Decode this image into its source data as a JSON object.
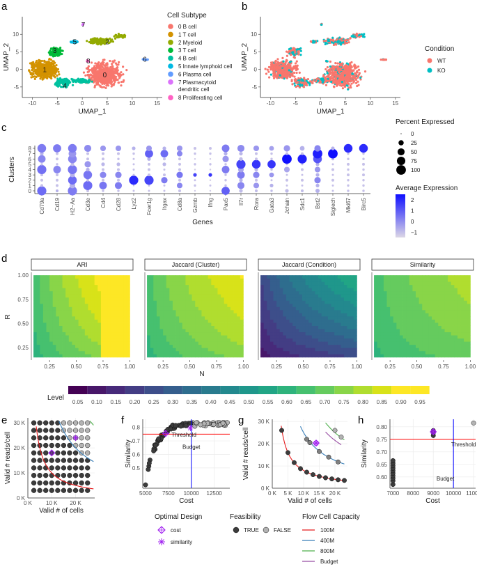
{
  "panels": {
    "a": "a",
    "b": "b",
    "c": "c",
    "d": "d",
    "e": "e",
    "f": "f",
    "g": "g",
    "h": "h"
  },
  "chart_data": [
    {
      "id": "a",
      "type": "scatter",
      "xlabel": "UMAP_1",
      "ylabel": "UMAP_2",
      "xticks": [
        -10,
        -5,
        0,
        5,
        10,
        15
      ],
      "yticks": [
        -5,
        0,
        5,
        10
      ],
      "xlim": [
        -12,
        16
      ],
      "ylim": [
        -8,
        15
      ],
      "legend_title": "Cell Subtype",
      "clusters": [
        {
          "label": "0 B cell",
          "id": "0",
          "color": "#F8766D",
          "center": [
            4.5,
            -1.5
          ]
        },
        {
          "label": "1 T cell",
          "id": "1",
          "color": "#D39200",
          "center": [
            -7.5,
            0
          ]
        },
        {
          "label": "2 Myeloid",
          "id": "2",
          "color": "#93AA00",
          "center": [
            5,
            8
          ]
        },
        {
          "label": "3 T cell",
          "id": "3",
          "color": "#00BA38",
          "center": [
            -5.5,
            5.5
          ]
        },
        {
          "label": "4 B cell",
          "id": "4",
          "color": "#00C19F",
          "center": [
            -3.5,
            -4.5
          ]
        },
        {
          "label": "5 Innate lymphoid cell",
          "id": "5",
          "color": "#00B9E3",
          "center": [
            -1.5,
            8
          ]
        },
        {
          "label": "6 Plasma cell",
          "id": "6",
          "color": "#619CFF",
          "center": [
            12.5,
            3
          ]
        },
        {
          "label": "7 Plasmacytoid dendritic cell",
          "id": "7",
          "color": "#DB72FB",
          "center": [
            0.2,
            12.8
          ]
        },
        {
          "label": "8 Proliferating cell",
          "id": "8",
          "color": "#FF61C3",
          "center": [
            1.2,
            2.5
          ]
        }
      ]
    },
    {
      "id": "b",
      "type": "scatter",
      "xlabel": "UMAP_1",
      "ylabel": "UMAP_2",
      "xticks": [
        -10,
        -5,
        0,
        5,
        10,
        15
      ],
      "yticks": [
        -5,
        0,
        5,
        10
      ],
      "legend_title": "Condition",
      "series": [
        {
          "name": "WT",
          "color": "#F8766D"
        },
        {
          "name": "KO",
          "color": "#00BFC4"
        }
      ]
    },
    {
      "id": "c",
      "type": "dotplot",
      "xlabel": "Genes",
      "ylabel": "Clusters",
      "genes": [
        "Cd79a",
        "Cd19",
        "H2−Aa",
        "Cd3e",
        "Cd4",
        "Cd28",
        "Lyz2",
        "Fcer1g",
        "Itgax",
        "Cd8a",
        "Gzmb",
        "Ifng",
        "Pax5",
        "Il7r",
        "Rora",
        "Gata3",
        "Jchain",
        "Sdc1",
        "Bst2",
        "Siglech",
        "Mki67",
        "Birc5"
      ],
      "clusters": [
        "0",
        "1",
        "2",
        "3",
        "4",
        "5",
        "6",
        "7",
        "8"
      ],
      "pct_expressed": [
        [
          90,
          5,
          90,
          5,
          3,
          3,
          2,
          2,
          2,
          5,
          1,
          1,
          70,
          10,
          5,
          3,
          10,
          5,
          15,
          2,
          3,
          3
        ],
        [
          5,
          5,
          30,
          90,
          60,
          50,
          1,
          2,
          2,
          30,
          3,
          2,
          3,
          50,
          30,
          10,
          2,
          2,
          10,
          2,
          3,
          3
        ],
        [
          5,
          5,
          80,
          5,
          5,
          5,
          90,
          90,
          40,
          5,
          2,
          1,
          3,
          10,
          5,
          2,
          5,
          5,
          40,
          5,
          3,
          3
        ],
        [
          5,
          5,
          20,
          80,
          40,
          40,
          2,
          5,
          5,
          40,
          10,
          10,
          3,
          60,
          40,
          20,
          2,
          2,
          10,
          2,
          5,
          5
        ],
        [
          90,
          60,
          90,
          10,
          5,
          5,
          2,
          5,
          2,
          5,
          1,
          1,
          60,
          30,
          10,
          3,
          30,
          5,
          30,
          5,
          3,
          3
        ],
        [
          3,
          3,
          10,
          40,
          10,
          10,
          2,
          5,
          10,
          5,
          3,
          3,
          3,
          90,
          80,
          70,
          2,
          2,
          10,
          2,
          5,
          5
        ],
        [
          60,
          5,
          80,
          5,
          5,
          3,
          2,
          10,
          5,
          5,
          1,
          1,
          40,
          10,
          5,
          3,
          100,
          90,
          80,
          5,
          3,
          3
        ],
        [
          10,
          5,
          60,
          5,
          5,
          5,
          3,
          70,
          60,
          30,
          3,
          3,
          10,
          10,
          5,
          3,
          5,
          5,
          100,
          100,
          3,
          3
        ],
        [
          80,
          70,
          80,
          50,
          30,
          30,
          10,
          30,
          10,
          30,
          5,
          5,
          60,
          50,
          30,
          20,
          40,
          20,
          40,
          10,
          80,
          80
        ]
      ],
      "avg_expression": [
        [
          0.8,
          -0.5,
          0.5,
          -0.8,
          -0.8,
          -0.8,
          -0.8,
          -0.8,
          -0.8,
          -0.8,
          -1,
          -1,
          1.0,
          -0.7,
          -0.7,
          -0.7,
          -0.7,
          -0.7,
          -0.5,
          -0.8,
          -0.8,
          -0.8
        ],
        [
          -0.8,
          -0.8,
          -0.5,
          0.8,
          0.6,
          0.5,
          -0.8,
          -0.8,
          -0.8,
          0.3,
          -0.8,
          -0.8,
          -0.8,
          0.3,
          0,
          -0.5,
          -0.8,
          -0.8,
          -0.5,
          -0.8,
          -0.8,
          -0.8
        ],
        [
          -0.8,
          -0.8,
          0.8,
          -0.8,
          -0.8,
          -0.8,
          2.0,
          1.5,
          0.5,
          -0.8,
          -0.8,
          -1,
          -0.8,
          -0.5,
          -0.8,
          -0.8,
          -0.8,
          -0.8,
          0.3,
          -0.8,
          -0.8,
          -0.8
        ],
        [
          -0.8,
          -0.8,
          -0.5,
          0.6,
          0.3,
          0.3,
          -0.8,
          -0.8,
          -0.8,
          0.6,
          1.5,
          1.8,
          -0.8,
          0.5,
          0.3,
          0,
          -0.8,
          -0.8,
          -0.5,
          -0.8,
          -0.8,
          -0.8
        ],
        [
          0.7,
          0.3,
          0.6,
          -0.5,
          -0.8,
          -0.8,
          -0.8,
          -0.8,
          -0.8,
          -0.8,
          -1,
          -1,
          0.5,
          -0.3,
          -0.6,
          -0.8,
          -0.3,
          -0.8,
          0,
          -0.8,
          -0.8,
          -0.8
        ],
        [
          -0.8,
          -0.8,
          -0.8,
          0,
          -0.6,
          -0.6,
          -0.8,
          -0.8,
          -0.6,
          -0.8,
          -0.8,
          -0.8,
          -0.8,
          1.5,
          1.8,
          1.8,
          -0.8,
          -0.8,
          -0.5,
          -0.8,
          -0.8,
          -0.8
        ],
        [
          0.3,
          -0.8,
          0.3,
          -0.8,
          -0.8,
          -0.8,
          -0.8,
          -0.5,
          -0.8,
          -0.8,
          -1,
          -1,
          0,
          -0.7,
          -0.8,
          -0.8,
          2.5,
          2.2,
          1.2,
          -0.6,
          -0.8,
          -0.8
        ],
        [
          -0.5,
          -0.8,
          0,
          -0.8,
          -0.8,
          -0.8,
          -0.8,
          1.0,
          0.8,
          0.3,
          -0.8,
          -0.8,
          -0.5,
          -0.6,
          -0.8,
          -0.8,
          -0.7,
          -0.8,
          2.2,
          2.5,
          -0.8,
          -0.8
        ],
        [
          0.5,
          0.5,
          0.5,
          0.2,
          0,
          0,
          -0.5,
          0,
          -0.5,
          0,
          -0.8,
          -0.8,
          0.5,
          0.2,
          0,
          -0.2,
          0,
          -0.5,
          0.3,
          -0.5,
          2.0,
          2.0
        ]
      ],
      "size_legend_title": "Percent Expressed",
      "size_legend": [
        0,
        25,
        50,
        75,
        100
      ],
      "color_legend_title": "Average Expression",
      "color_legend_ticks": [
        2,
        1,
        0,
        -1
      ]
    },
    {
      "id": "d",
      "type": "heatmap",
      "xlabel": "N",
      "ylabel": "R",
      "xticks": [
        0.25,
        0.5,
        0.75,
        1.0
      ],
      "xtick_labels": [
        "0.25",
        "0.50",
        "0.75",
        "1.00"
      ],
      "yticks": [
        0.25,
        0.5,
        0.75,
        1.0
      ],
      "ytick_labels": [
        "0.25",
        "0.50",
        "0.75",
        "1.00"
      ],
      "facets": [
        "ARI",
        "Jaccard (Cluster)",
        "Jaccard (Condition)",
        "Similarity"
      ],
      "legend_title": "Level",
      "levels": [
        "0.05",
        "0.10",
        "0.15",
        "0.20",
        "0.25",
        "0.30",
        "0.35",
        "0.40",
        "0.45",
        "0.50",
        "0.55",
        "0.60",
        "0.65",
        "0.70",
        "0.75",
        "0.80",
        "0.85",
        "0.90",
        "0.95"
      ],
      "level_colors": [
        "#440154",
        "#481769",
        "#472a7a",
        "#433d84",
        "#3d4e8a",
        "#355e8d",
        "#2e6d8e",
        "#297b8e",
        "#23898e",
        "#1f978b",
        "#21a585",
        "#2eb37c",
        "#46c06f",
        "#65cb5e",
        "#89d548",
        "#b0dd2f",
        "#d8e219",
        "#fde725",
        "#fde725"
      ]
    },
    {
      "id": "e",
      "type": "scatter",
      "xlabel": "Valid # of cells",
      "ylabel": "Valid # reads/cell",
      "xticks": [
        "0 K",
        "10 K",
        "20 K"
      ],
      "yticks": [
        "0 K",
        "10 K",
        "20 K",
        "30 K"
      ],
      "xlim": [
        0,
        28
      ],
      "ylim": [
        0,
        32
      ]
    },
    {
      "id": "f",
      "type": "scatter",
      "xlabel": "Cost",
      "ylabel": "Similarity",
      "xticks": [
        5000,
        7500,
        10000,
        12500
      ],
      "yticks": [
        0.5,
        0.6,
        0.7,
        0.8
      ],
      "xlim": [
        4700,
        14200
      ],
      "ylim": [
        0.35,
        0.86
      ],
      "threshold": 0.75,
      "threshold_label": "Threshold",
      "budget": 10000,
      "budget_label": "Budget"
    },
    {
      "id": "g",
      "type": "line",
      "xlabel": "Valid # of cells",
      "ylabel": "Valid # reads/cell",
      "xticks": [
        "0 K",
        "5 K",
        "10 K",
        "15 K",
        "20 K"
      ],
      "yticks": [
        "0 K",
        "10 K",
        "20 K",
        "30 K"
      ],
      "xlim": [
        0,
        24
      ],
      "ylim": [
        0,
        31
      ]
    },
    {
      "id": "h",
      "type": "scatter",
      "xlabel": "Cost",
      "ylabel": "Similarity",
      "xticks": [
        7000,
        8000,
        9000,
        10000,
        11000
      ],
      "yticks": [
        0.6,
        0.65,
        0.7,
        0.75,
        0.8
      ],
      "xlim": [
        6850,
        11100
      ],
      "ylim": [
        0.555,
        0.83
      ],
      "threshold": 0.75,
      "threshold_label": "Threshold",
      "budget": 10000,
      "budget_label": "Budget"
    }
  ],
  "bottom_legend": {
    "optimal_title": "Optimal Design",
    "optimal_items": [
      "cost",
      "similarity"
    ],
    "feasibility_title": "Feasibility",
    "feasibility_items": [
      "TRUE",
      "FALSE"
    ],
    "capacity_title": "Flow Cell Capacity",
    "capacity_items": [
      {
        "label": "100M",
        "color": "#e41a1c"
      },
      {
        "label": "400M",
        "color": "#377eb8"
      },
      {
        "label": "800M",
        "color": "#4daf4a"
      },
      {
        "label": "Budget",
        "color": "#984ea3"
      }
    ]
  }
}
